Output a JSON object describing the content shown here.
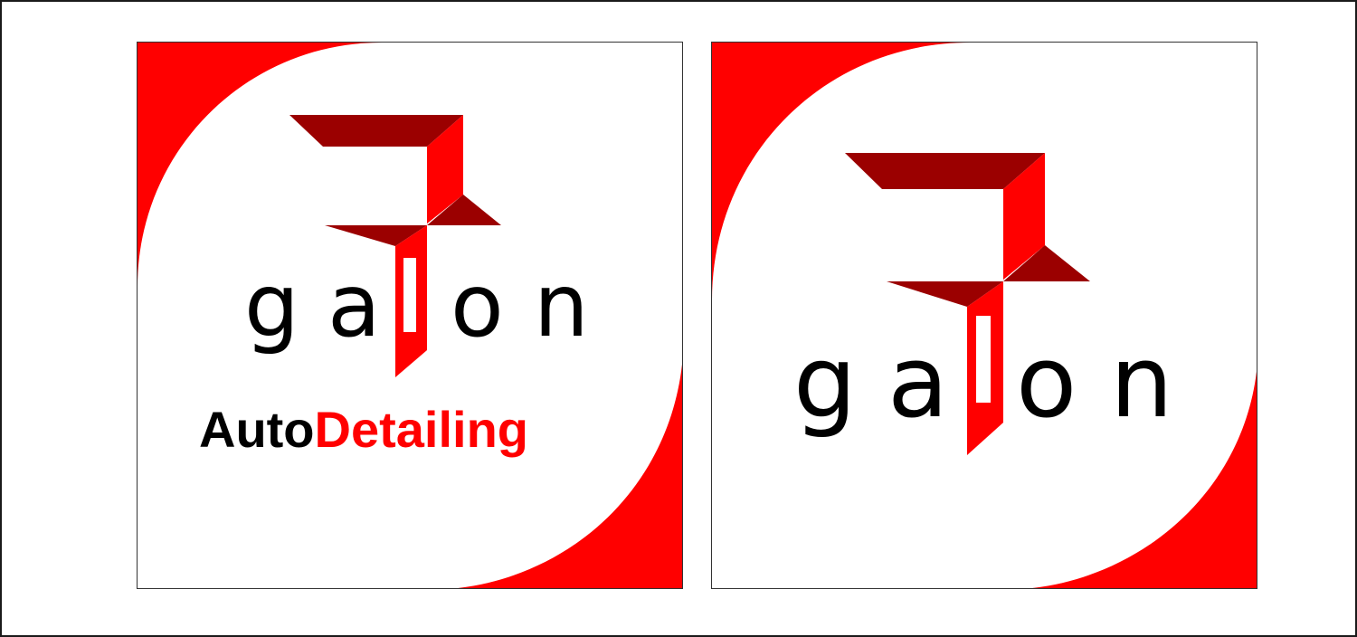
{
  "colors": {
    "accent": "#ff0000",
    "dark_accent": "#9b0000",
    "text": "#000000",
    "background": "#ffffff"
  },
  "logos": [
    {
      "wordmark": "galon",
      "tagline_part1": "Auto",
      "tagline_part2": "Detailing"
    },
    {
      "wordmark": "galon"
    }
  ]
}
